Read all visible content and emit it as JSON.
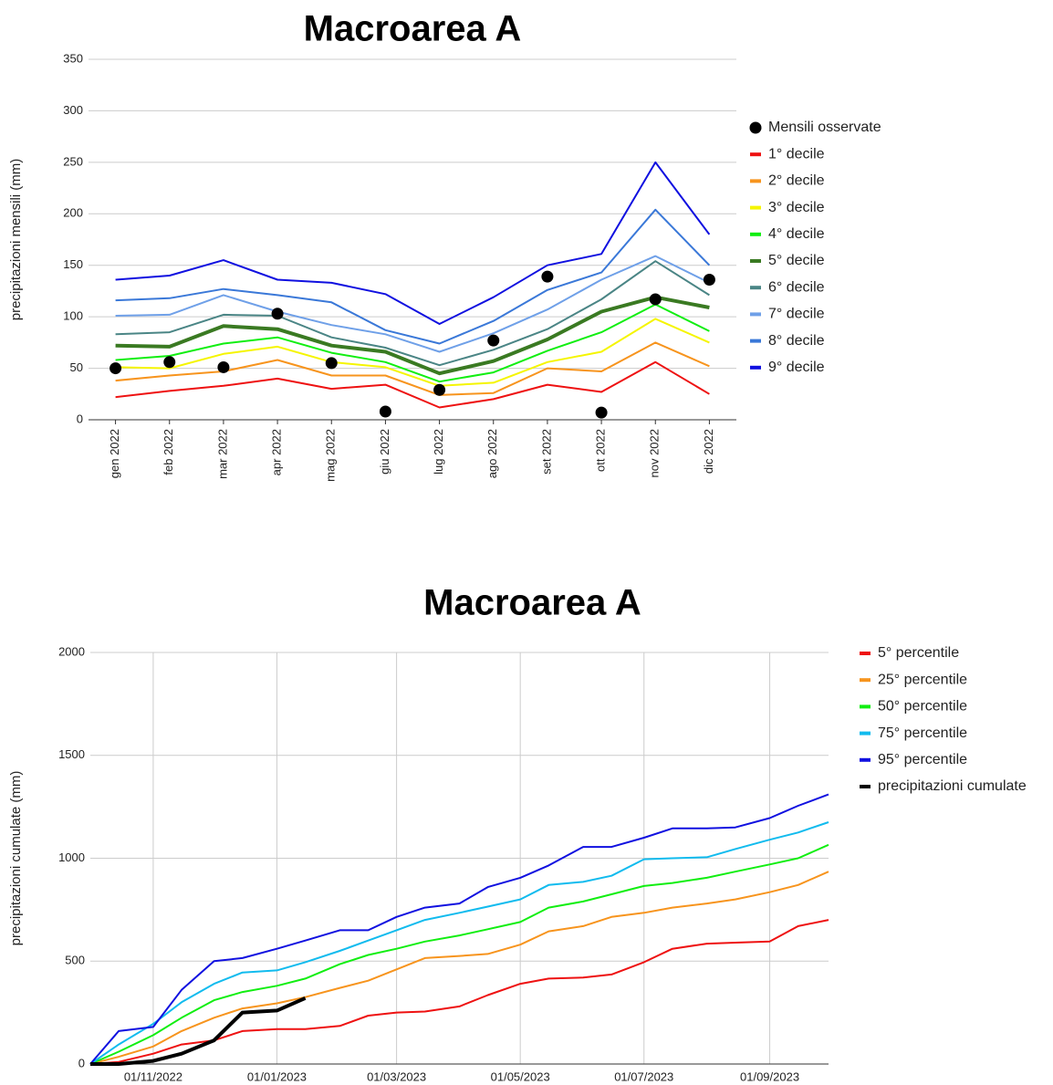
{
  "chart_data": [
    {
      "type": "line",
      "title": "Macroarea A",
      "y_label": "precipitazioni mensili (mm)",
      "categories": [
        "gen 2022",
        "feb 2022",
        "mar 2022",
        "apr 2022",
        "mag 2022",
        "giu 2022",
        "lug 2022",
        "ago 2022",
        "set 2022",
        "ott 2022",
        "nov 2022",
        "dic 2022"
      ],
      "ylim": [
        0,
        350
      ],
      "yticks": [
        0,
        50,
        100,
        150,
        200,
        250,
        300,
        350
      ],
      "grid": true,
      "series": [
        {
          "name": "Mensili osservate",
          "type": "scatter",
          "color": "#000000",
          "values": [
            50,
            56,
            51,
            103,
            55,
            8,
            29,
            77,
            139,
            7,
            117,
            136
          ]
        },
        {
          "name": "1° decile",
          "color": "#ee1111",
          "values": [
            22,
            28,
            33,
            40,
            30,
            34,
            12,
            20,
            34,
            27,
            56,
            25
          ]
        },
        {
          "name": "2° decile",
          "color": "#f7941d",
          "values": [
            38,
            43,
            47,
            58,
            43,
            43,
            24,
            26,
            50,
            47,
            75,
            52
          ]
        },
        {
          "name": "3° decile",
          "color": "#f5f500",
          "values": [
            51,
            50,
            64,
            71,
            56,
            51,
            33,
            36,
            56,
            66,
            98,
            75
          ]
        },
        {
          "name": "4° decile",
          "color": "#11ee11",
          "values": [
            58,
            62,
            74,
            80,
            65,
            56,
            37,
            46,
            67,
            85,
            112,
            86
          ]
        },
        {
          "name": "5° decile",
          "color": "#3a7a22",
          "line_width": 4,
          "values": [
            72,
            71,
            91,
            88,
            72,
            66,
            45,
            57,
            78,
            105,
            119,
            109
          ]
        },
        {
          "name": "6° decile",
          "color": "#4a8585",
          "values": [
            83,
            85,
            102,
            101,
            80,
            70,
            53,
            68,
            88,
            117,
            154,
            121
          ]
        },
        {
          "name": "7° decile",
          "color": "#6fa0e8",
          "values": [
            101,
            102,
            121,
            105,
            92,
            83,
            66,
            84,
            107,
            136,
            159,
            133
          ]
        },
        {
          "name": "8° decile",
          "color": "#3a78d8",
          "values": [
            116,
            118,
            127,
            121,
            114,
            87,
            74,
            96,
            126,
            143,
            204,
            150
          ]
        },
        {
          "name": "9° decile",
          "color": "#1010e0",
          "values": [
            136,
            140,
            155,
            136,
            133,
            122,
            93,
            119,
            150,
            161,
            250,
            180
          ]
        }
      ]
    },
    {
      "type": "line",
      "title": "Macroarea A",
      "y_label": "precipitazioni cumulate (mm)",
      "x": [
        "01/10/2022",
        "15/10/2022",
        "01/11/2022",
        "15/11/2022",
        "01/12/2022",
        "15/12/2022",
        "01/01/2023",
        "15/01/2023",
        "01/02/2023",
        "15/02/2023",
        "01/03/2023",
        "15/03/2023",
        "01/04/2023",
        "15/04/2023",
        "01/05/2023",
        "15/05/2023",
        "01/06/2023",
        "15/06/2023",
        "01/07/2023",
        "15/07/2023",
        "01/08/2023",
        "15/08/2023",
        "01/09/2023",
        "15/09/2023",
        "30/09/2023"
      ],
      "xlim": [
        "01/10/2022",
        "30/09/2023"
      ],
      "xticks": [
        "01/11/2022",
        "01/01/2023",
        "01/03/2023",
        "01/05/2023",
        "01/07/2023",
        "01/09/2023"
      ],
      "ylim": [
        0,
        2000
      ],
      "yticks": [
        0,
        500,
        1000,
        1500,
        2000
      ],
      "grid": true,
      "series": [
        {
          "name": "5° percentile",
          "color": "#ee1111",
          "values": [
            0,
            10,
            50,
            95,
            115,
            160,
            170,
            170,
            185,
            235,
            250,
            255,
            280,
            335,
            390,
            415,
            420,
            435,
            495,
            560,
            585,
            590,
            595,
            670,
            700
          ]
        },
        {
          "name": "25° percentile",
          "color": "#f7941d",
          "values": [
            0,
            35,
            85,
            160,
            225,
            270,
            295,
            325,
            370,
            405,
            460,
            515,
            525,
            535,
            580,
            645,
            670,
            715,
            735,
            760,
            780,
            800,
            835,
            870,
            935
          ]
        },
        {
          "name": "50° percentile",
          "color": "#11ee11",
          "values": [
            0,
            60,
            140,
            225,
            310,
            350,
            380,
            415,
            485,
            530,
            560,
            595,
            625,
            655,
            690,
            760,
            790,
            825,
            865,
            880,
            905,
            935,
            970,
            1000,
            1065
          ]
        },
        {
          "name": "75° percentile",
          "color": "#11bbee",
          "values": [
            0,
            95,
            195,
            300,
            390,
            445,
            455,
            495,
            550,
            600,
            650,
            700,
            735,
            765,
            800,
            870,
            885,
            915,
            995,
            1000,
            1005,
            1045,
            1090,
            1125,
            1175
          ]
        },
        {
          "name": "95° percentile",
          "color": "#1010e0",
          "values": [
            0,
            160,
            180,
            360,
            500,
            515,
            560,
            600,
            650,
            650,
            715,
            760,
            780,
            860,
            905,
            965,
            1055,
            1055,
            1100,
            1145,
            1145,
            1150,
            1195,
            1255,
            1310
          ]
        },
        {
          "name": "precipitazioni cumulate",
          "color": "#000000",
          "line_width": 4,
          "values": [
            0,
            0,
            15,
            50,
            115,
            250,
            260,
            320,
            null,
            null,
            null,
            null,
            null,
            null,
            null,
            null,
            null,
            null,
            null,
            null,
            null,
            null,
            null,
            null,
            null
          ]
        }
      ]
    }
  ]
}
